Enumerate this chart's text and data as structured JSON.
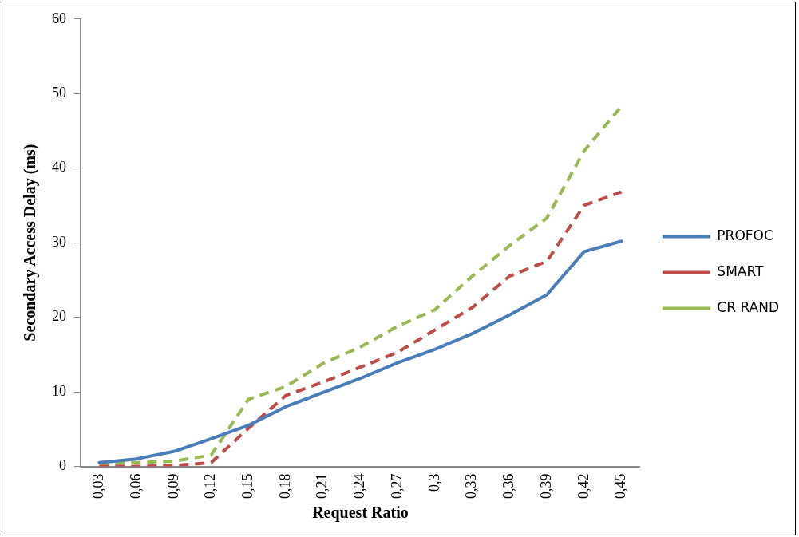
{
  "chart_data": {
    "type": "line",
    "xlabel": "Request Ratio",
    "ylabel": "Secondary Access Delay (ms)",
    "categories": [
      "0,03",
      "0,06",
      "0,09",
      "0,12",
      "0,15",
      "0,18",
      "0,21",
      "0,24",
      "0,27",
      "0,3",
      "0,33",
      "0,36",
      "0,39",
      "0,42",
      "0,45"
    ],
    "series": [
      {
        "name": "PROFOC",
        "color": "#4a7ebb",
        "line_style": "solid",
        "values": [
          0.5,
          1,
          2,
          3.7,
          5.5,
          8,
          9.9,
          11.8,
          13.9,
          15.7,
          17.8,
          20.3,
          23,
          28.8,
          30.2
        ]
      },
      {
        "name": "SMART",
        "color": "#be4b48",
        "line_style": "dashed",
        "values": [
          0,
          0,
          0.1,
          0.5,
          5.1,
          9.5,
          11.3,
          13.3,
          15.3,
          18.3,
          21.3,
          25.5,
          27.5,
          35,
          36.8
        ]
      },
      {
        "name": "CR RAND",
        "color": "#98b954",
        "line_style": "dashed",
        "values": [
          0.3,
          0.5,
          0.7,
          1.5,
          9,
          10.7,
          13.8,
          16,
          18.8,
          21,
          25.5,
          29.6,
          33.3,
          42.3,
          48.3
        ]
      }
    ],
    "ylim": [
      0,
      60
    ],
    "yticks": [
      0,
      10,
      20,
      30,
      40,
      50,
      60
    ],
    "grid": false,
    "legend": "right",
    "marker": "none"
  }
}
